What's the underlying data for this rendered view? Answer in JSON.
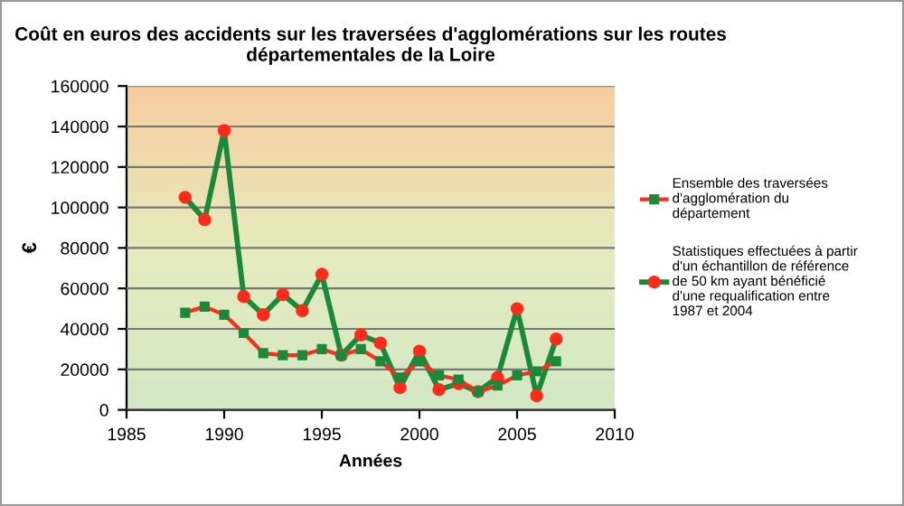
{
  "chart_data": {
    "type": "line",
    "title": "Coût en euros des accidents sur les traversées d'agglomérations sur les routes\ndépartementales de la Loire",
    "xlabel": "Années",
    "ylabel": "€",
    "x": [
      1988,
      1989,
      1990,
      1991,
      1992,
      1993,
      1994,
      1995,
      1996,
      1997,
      1998,
      1999,
      2000,
      2001,
      2002,
      2003,
      2004,
      2005,
      2006,
      2007
    ],
    "series": [
      {
        "name": "Ensemble des traversées\nd'agglomération du\ndépartement",
        "color": "#ff2a1a",
        "marker": "square",
        "values": [
          48000,
          51000,
          47000,
          38000,
          28000,
          27000,
          27000,
          30000,
          27000,
          30000,
          24000,
          16000,
          24000,
          17000,
          15000,
          9000,
          12000,
          17000,
          19000,
          24000
        ]
      },
      {
        "name": "Statistiques effectuées à partir\nd'un échantillon de référence\nde 50 km ayant bénéficié\nd'une requalification entre\n1987 et 2004",
        "color": "#1a8a3a",
        "marker": "circle",
        "values": [
          105000,
          94000,
          138000,
          56000,
          47000,
          57000,
          49000,
          67000,
          27000,
          37000,
          33000,
          11000,
          29000,
          10000,
          13000,
          9000,
          16000,
          50000,
          7000,
          35000
        ]
      }
    ],
    "xlim": [
      1985,
      2010
    ],
    "xticks": [
      1985,
      1990,
      1995,
      2000,
      2005,
      2010
    ],
    "ylim": [
      0,
      160000
    ],
    "yticks": [
      0,
      20000,
      40000,
      60000,
      80000,
      100000,
      120000,
      140000,
      160000
    ],
    "grid": "y",
    "legend": "right"
  }
}
